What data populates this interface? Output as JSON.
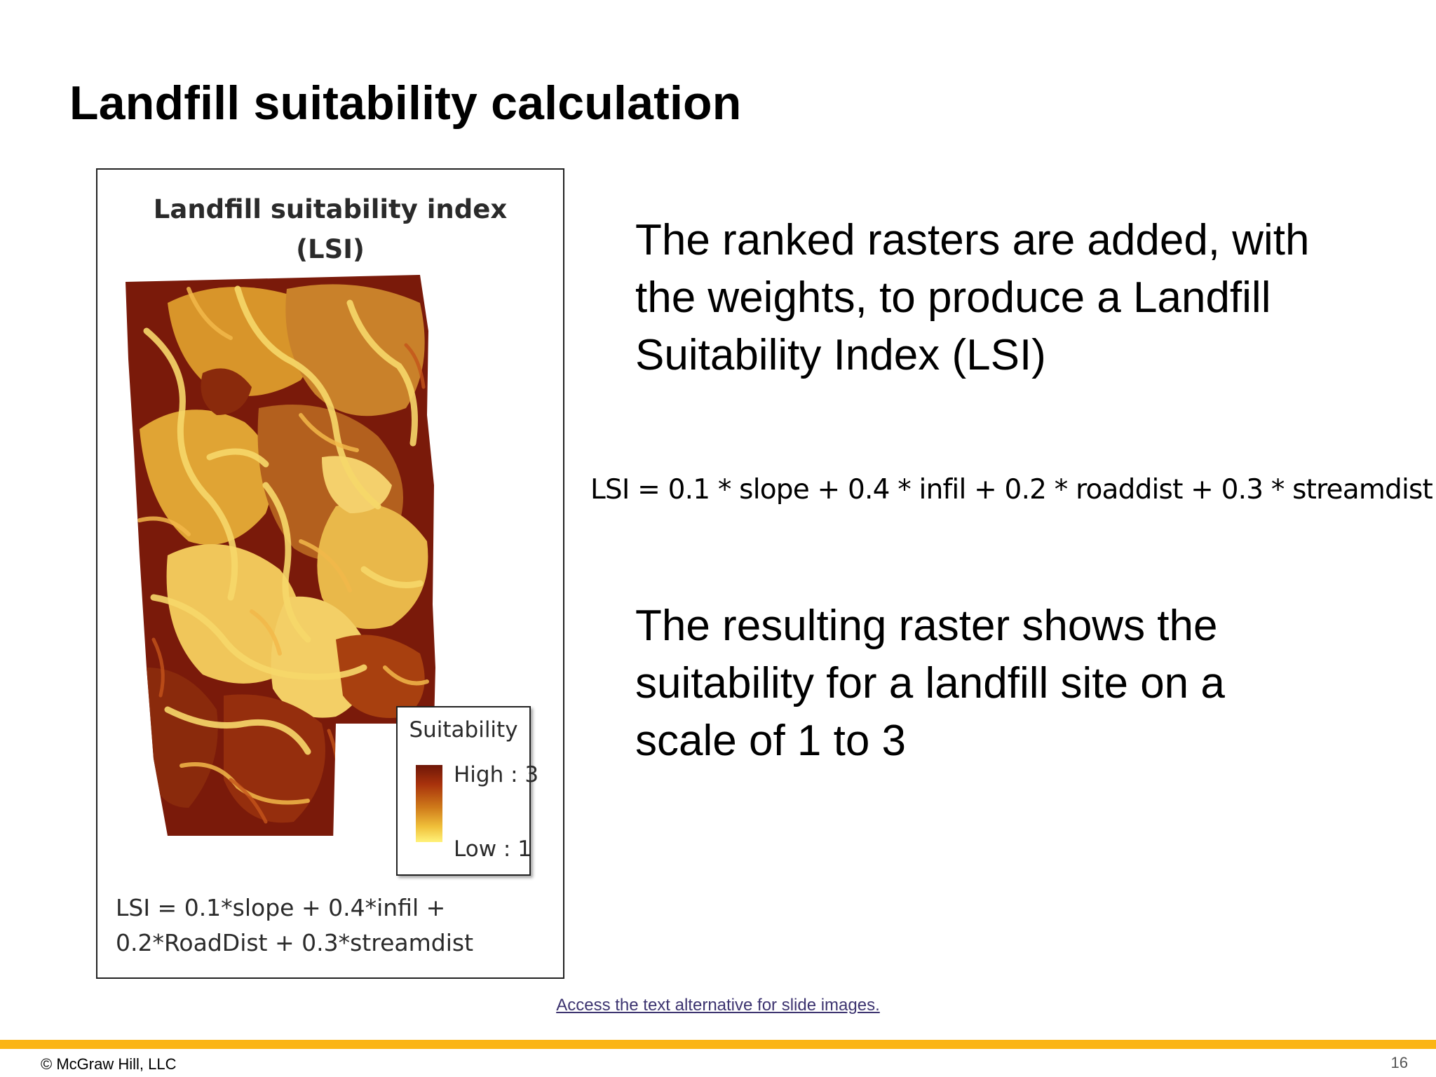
{
  "slide": {
    "title": "Landfill suitability calculation",
    "page_number": "16",
    "copyright": "© McGraw Hill, LLC",
    "alt_text_link": "Access the text alternative for slide images."
  },
  "figure": {
    "title_line1": "Landfill suitability index",
    "title_line2": "(LSI)",
    "legend": {
      "title": "Suitability",
      "high_label": "High : 3",
      "low_label": "Low : 1",
      "high_color": "#6e1608",
      "low_color": "#fff27a"
    },
    "formula_line1": "LSI = 0.1*slope + 0.4*infil +",
    "formula_line2": "0.2*RoadDist + 0.3*streamdist"
  },
  "content": {
    "paragraph1": "The ranked rasters are added, with the weights, to produce a Landfill Suitability Index (LSI)",
    "formula": "LSI = 0.1 * slope + 0.4 * infil + 0.2 * roaddist + 0.3 * streamdist",
    "paragraph2": "The resulting raster shows the suitability for a landfill site on a scale of 1 to 3"
  },
  "colors": {
    "accent_bar": "#fbb514",
    "link": "#3d3470"
  }
}
